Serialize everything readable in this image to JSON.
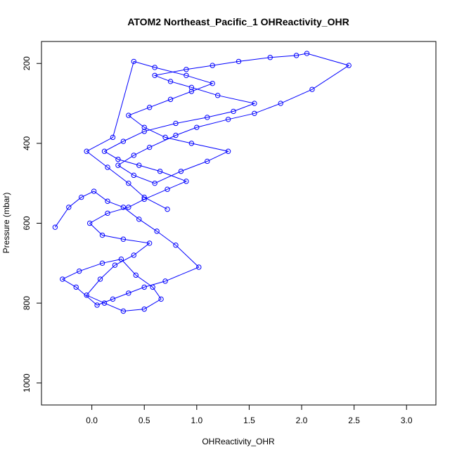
{
  "chart_data": {
    "type": "scatter",
    "title": "ATOM2 Northeast_Pacific_1 OHReactivity_OHR",
    "xlabel": "OHReactivity_OHR",
    "ylabel": "Pressure (mbar)",
    "xlim": [
      -0.48,
      3.28
    ],
    "ylim": [
      1055,
      145
    ],
    "y_reversed": true,
    "x_ticks": [
      "0.0",
      "0.5",
      "1.0",
      "1.5",
      "2.0",
      "2.5",
      "3.0"
    ],
    "y_ticks": [
      "200",
      "400",
      "600",
      "800",
      "1000"
    ],
    "grid": false,
    "legend": "none",
    "series_color": "#0000ff",
    "marker": "open-circle",
    "connected": true,
    "series": [
      {
        "x": [
          -0.35,
          -0.22,
          -0.1,
          0.02,
          0.15,
          0.3,
          0.45,
          0.62,
          0.8,
          1.02,
          0.7,
          0.5,
          0.35,
          0.2,
          0.05,
          -0.15,
          -0.28,
          -0.12,
          0.1,
          0.28,
          0.42,
          0.58,
          0.66,
          0.5,
          0.3,
          0.12,
          -0.05,
          0.08,
          0.22,
          0.4,
          0.55,
          0.3,
          0.1,
          -0.02,
          0.15,
          0.35,
          0.5,
          0.72,
          0.9,
          0.65,
          0.45,
          0.25,
          0.12,
          0.3,
          0.5,
          0.8,
          1.1,
          1.35,
          1.55,
          1.2,
          0.95,
          0.75,
          0.6,
          0.9,
          1.15,
          1.4,
          1.7,
          1.95,
          2.05,
          2.45,
          2.1,
          1.8,
          1.55,
          1.3,
          1.0,
          0.8,
          0.55,
          0.4,
          0.25,
          0.4,
          0.6,
          0.85,
          1.1,
          1.3,
          0.95,
          0.7,
          0.5,
          0.35,
          0.55,
          0.75,
          0.95,
          1.15,
          0.9,
          0.6,
          0.4,
          0.2,
          -0.05,
          0.15,
          0.35,
          0.5,
          0.72
        ],
        "y": [
          610,
          560,
          535,
          520,
          545,
          560,
          590,
          620,
          655,
          710,
          745,
          760,
          775,
          790,
          805,
          760,
          740,
          720,
          700,
          690,
          730,
          760,
          790,
          815,
          820,
          800,
          780,
          740,
          705,
          680,
          650,
          640,
          630,
          600,
          575,
          560,
          540,
          515,
          495,
          470,
          455,
          440,
          420,
          395,
          370,
          350,
          335,
          320,
          300,
          280,
          260,
          245,
          230,
          215,
          205,
          195,
          185,
          180,
          175,
          205,
          265,
          300,
          325,
          340,
          360,
          380,
          410,
          430,
          455,
          480,
          500,
          470,
          445,
          420,
          400,
          385,
          360,
          330,
          310,
          290,
          270,
          250,
          230,
          210,
          195,
          385,
          420,
          460,
          500,
          535,
          565
        ]
      }
    ]
  }
}
